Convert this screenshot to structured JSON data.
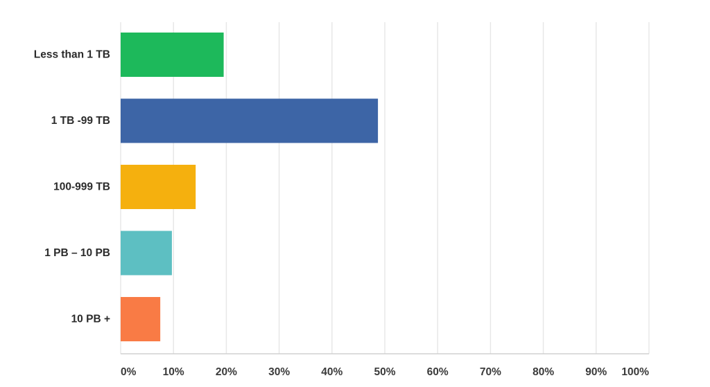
{
  "chart_data": {
    "type": "bar",
    "orientation": "horizontal",
    "categories": [
      "Less than 1 TB",
      "1 TB -99 TB",
      "100-999 TB",
      "1 PB – 10 PB",
      "10 PB +"
    ],
    "values": [
      19.5,
      48.7,
      14.2,
      9.7,
      7.5
    ],
    "colors": [
      "#1db95b",
      "#3d65a6",
      "#f5b00e",
      "#5dbfc2",
      "#f97b45"
    ],
    "xlim": [
      0,
      100
    ],
    "x_ticks": [
      0,
      10,
      20,
      30,
      40,
      50,
      60,
      70,
      80,
      90,
      100
    ],
    "x_tick_labels": [
      "0%",
      "10%",
      "20%",
      "30%",
      "40%",
      "50%",
      "60%",
      "70%",
      "80%",
      "90%",
      "100%"
    ],
    "grid": true,
    "title": "",
    "xlabel": "",
    "ylabel": ""
  }
}
